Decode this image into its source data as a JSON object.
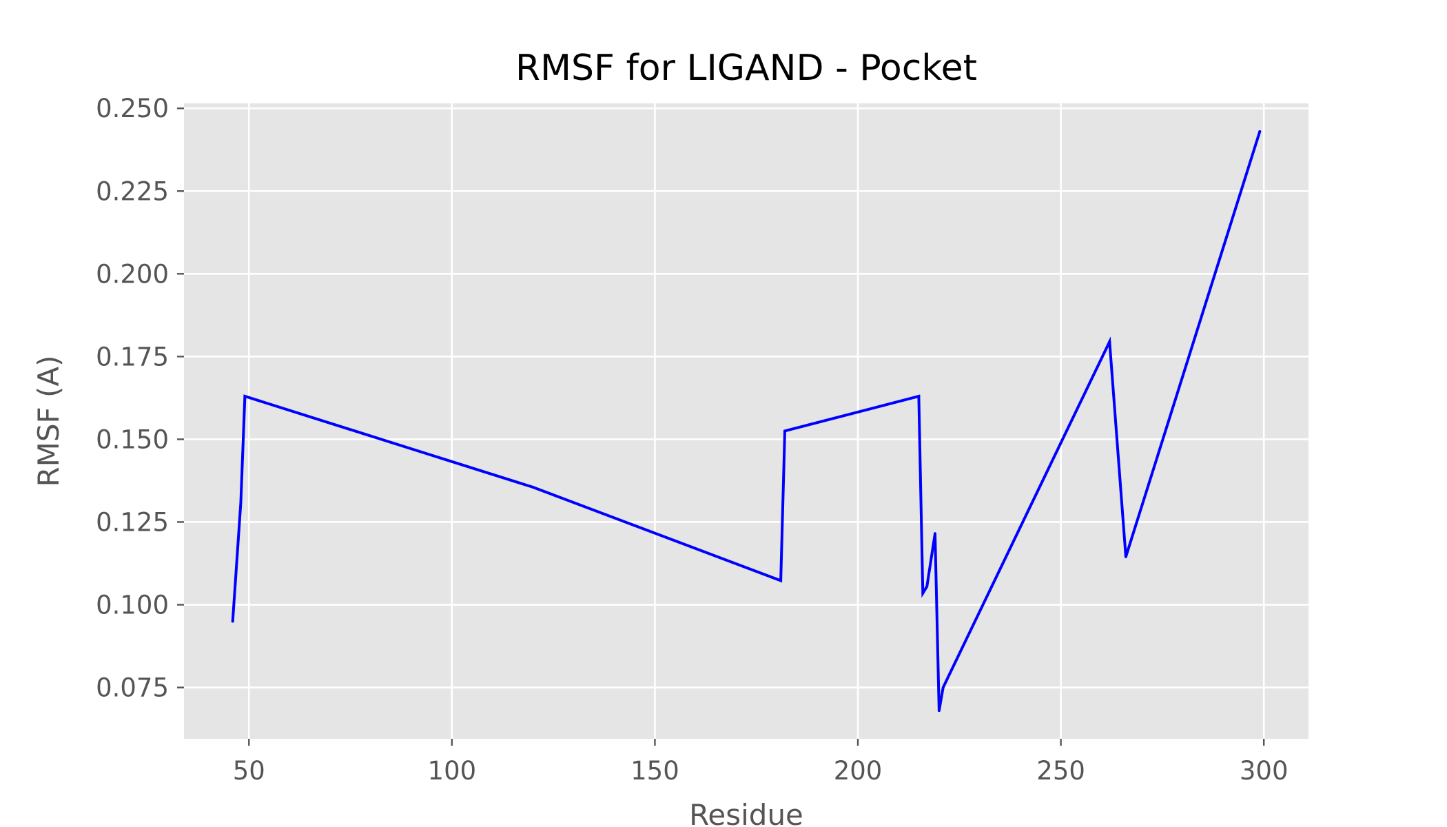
{
  "chart_data": {
    "type": "line",
    "title": "RMSF for LIGAND - Pocket",
    "xlabel": "Residue",
    "ylabel": "RMSF (A)",
    "xlim": [
      34,
      311
    ],
    "ylim": [
      0.0595,
      0.2515
    ],
    "xticks": [
      50,
      100,
      150,
      200,
      250,
      300
    ],
    "yticks": [
      0.075,
      0.1,
      0.125,
      0.15,
      0.175,
      0.2,
      0.225,
      0.25
    ],
    "grid": true,
    "colors": {
      "background": "#e5e5e5",
      "grid": "#ffffff",
      "line": "#0000ff"
    },
    "series": [
      {
        "x": [
          46,
          48,
          49,
          120,
          181,
          182,
          215,
          216,
          217,
          219,
          220,
          221,
          262,
          266,
          299
        ],
        "y": [
          0.095,
          0.131,
          0.163,
          0.1355,
          0.1073,
          0.1525,
          0.163,
          0.1035,
          0.1055,
          0.1215,
          0.068,
          0.075,
          0.1795,
          0.1145,
          0.243
        ]
      }
    ]
  }
}
